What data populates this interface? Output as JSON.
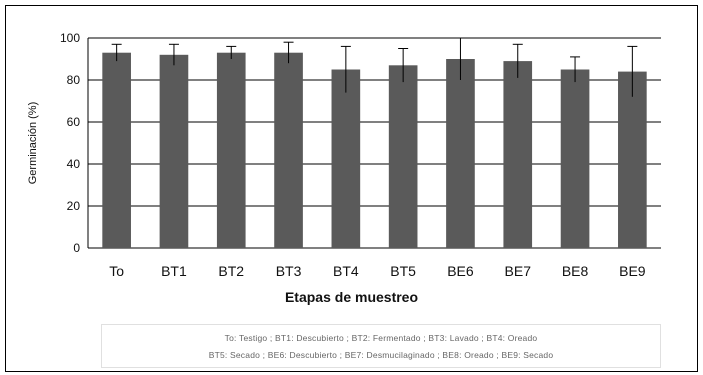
{
  "chart_data": {
    "type": "bar",
    "title": "",
    "xlabel": "Etapas de muestreo",
    "ylabel": "Germinación (%)",
    "ylim": [
      0,
      100
    ],
    "yticks": [
      0,
      20,
      40,
      60,
      80,
      100
    ],
    "grid": true,
    "categories": [
      "To",
      "BT1",
      "BT2",
      "BT3",
      "BT4",
      "BT5",
      "BE6",
      "BE7",
      "BE8",
      "BE9"
    ],
    "values": [
      93,
      92,
      93,
      93,
      85,
      87,
      90,
      89,
      85,
      84
    ],
    "errors": [
      4,
      5,
      3,
      5,
      11,
      8,
      10,
      8,
      6,
      12
    ],
    "bar_color": "#5a5a5a",
    "legend": {
      "position": "bottom",
      "line1": "To: Testigo ; BT1: Descubierto ; BT2: Fermentado ; BT3: Lavado ; BT4: Oreado",
      "line2": "BT5: Secado ; BE6: Descubierto ; BE7: Desmucilaginado ; BE8: Oreado ; BE9: Secado"
    }
  }
}
